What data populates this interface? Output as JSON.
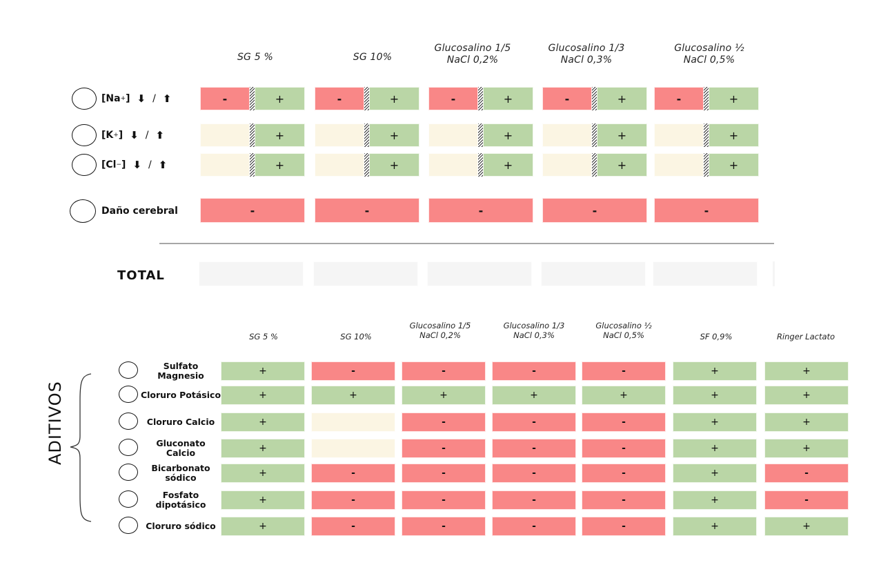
{
  "top_table": {
    "columns": [
      "SG 5 %",
      "SG 10%",
      "Glucosalino 1/5\nNaCl 0,2%",
      "Glucosalino 1/3\nNaCl 0,3%",
      "Glucosalino ½\nNaCl 0,5%"
    ],
    "column_lines": [
      [
        "SG 5 %",
        ""
      ],
      [
        "SG 10%",
        ""
      ],
      [
        "Glucosalino 1/5",
        "NaCl 0,2%"
      ],
      [
        "Glucosalino 1/3",
        "NaCl 0,3%"
      ],
      [
        "Glucosalino ½",
        "NaCl 0,5%"
      ]
    ],
    "rows": [
      {
        "label": "[Na",
        "sup": "+",
        "close": "]",
        "down": "⬇",
        "slash": "/",
        "up": "⬆",
        "cells": [
          [
            "-",
            "+"
          ],
          [
            "-",
            "+"
          ],
          [
            "-",
            "+"
          ],
          [
            "-",
            "+"
          ],
          [
            "-",
            "+"
          ]
        ],
        "left_state": "neg"
      },
      {
        "label": "[K",
        "sup": "+",
        "close": "]",
        "down": "⬇",
        "slash": "/",
        "up": "⬆",
        "cells": [
          [
            "",
            "+"
          ],
          [
            "",
            "+"
          ],
          [
            "",
            "+"
          ],
          [
            "",
            "+"
          ],
          [
            "",
            "+"
          ]
        ],
        "left_state": "neu"
      },
      {
        "label": "[Cl",
        "sup": "−",
        "close": "]",
        "down": "⬇",
        "slash": "/",
        "up": "⬆",
        "cells": [
          [
            "",
            "+"
          ],
          [
            "",
            "+"
          ],
          [
            "",
            "+"
          ],
          [
            "",
            "+"
          ],
          [
            "",
            "+"
          ]
        ],
        "left_state": "neu"
      }
    ],
    "brain_row": {
      "label": "Daño cerebral",
      "cells": [
        "-",
        "-",
        "-",
        "-",
        "-"
      ]
    },
    "total_label": "TOTAL",
    "total_cells": [
      "",
      "",
      "",
      "",
      ""
    ]
  },
  "additives_table": {
    "group_label": "ADITIVOS",
    "columns": [
      [
        "SG 5 %",
        ""
      ],
      [
        "SG 10%",
        ""
      ],
      [
        "Glucosalino 1/5",
        "NaCl 0,2%"
      ],
      [
        "Glucosalino 1/3",
        "NaCl 0,3%"
      ],
      [
        "Glucosalino ½",
        "NaCl 0,5%"
      ],
      [
        "SF 0,9%",
        ""
      ],
      [
        "Ringer Lactato",
        ""
      ]
    ],
    "rows": [
      {
        "label": [
          "Sulfato",
          "Magnesio"
        ],
        "cells": [
          "+",
          "-",
          "-",
          "-",
          "-",
          "+",
          "+"
        ]
      },
      {
        "label": [
          "Cloruro Potásico"
        ],
        "cells": [
          "+",
          "+",
          "+",
          "+",
          "+",
          "+",
          "+"
        ]
      },
      {
        "label": [
          "Cloruro Calcio"
        ],
        "cells": [
          "+",
          "",
          "-",
          "-",
          "-",
          "+",
          "+"
        ]
      },
      {
        "label": [
          "Gluconato",
          "Calcio"
        ],
        "cells": [
          "+",
          "",
          "-",
          "-",
          "-",
          "+",
          "+"
        ]
      },
      {
        "label": [
          "Bicarbonato",
          "sódico"
        ],
        "cells": [
          "+",
          "-",
          "-",
          "-",
          "-",
          "+",
          "-"
        ]
      },
      {
        "label": [
          "Fosfato",
          "dipotásico"
        ],
        "cells": [
          "+",
          "-",
          "-",
          "-",
          "-",
          "+",
          "-"
        ]
      },
      {
        "label": [
          "Cloruro sódico"
        ],
        "cells": [
          "+",
          "-",
          "-",
          "-",
          "-",
          "+",
          "+"
        ]
      }
    ]
  },
  "colors": {
    "negative": "#f98787",
    "positive": "#bad6a6",
    "neutral": "#fbf5e3",
    "total": "#f5f5f5",
    "divider": "#a6a6a6"
  }
}
